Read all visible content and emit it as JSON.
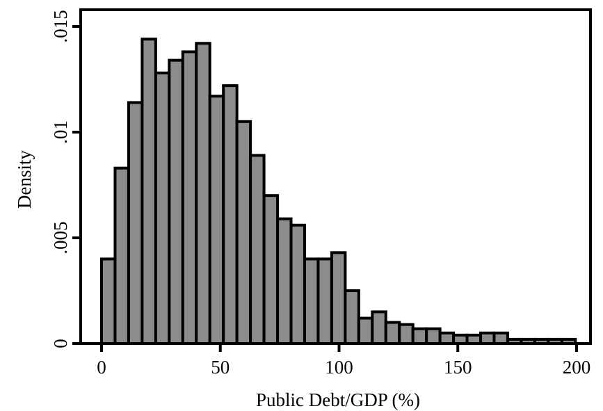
{
  "chart_data": {
    "type": "bar",
    "subtype": "histogram",
    "xlabel": "Public Debt/GDP (%)",
    "ylabel": "Density",
    "xlim": [
      0,
      200
    ],
    "ylim": [
      0,
      0.015
    ],
    "xticks": [
      {
        "value": 0,
        "label": "0"
      },
      {
        "value": 50,
        "label": "50"
      },
      {
        "value": 100,
        "label": "100"
      },
      {
        "value": 150,
        "label": "150"
      },
      {
        "value": 200,
        "label": "200"
      }
    ],
    "yticks": [
      {
        "value": 0,
        "label": "0"
      },
      {
        "value": 0.005,
        "label": ".005"
      },
      {
        "value": 0.01,
        "label": ".01"
      },
      {
        "value": 0.015,
        "label": ".015"
      }
    ],
    "bin_width": 5.7,
    "bins": [
      {
        "start": 0.0,
        "value": 0.004
      },
      {
        "start": 5.7,
        "value": 0.0083
      },
      {
        "start": 11.4,
        "value": 0.0114
      },
      {
        "start": 17.1,
        "value": 0.0144
      },
      {
        "start": 22.8,
        "value": 0.0128
      },
      {
        "start": 28.5,
        "value": 0.0134
      },
      {
        "start": 34.2,
        "value": 0.0138
      },
      {
        "start": 39.9,
        "value": 0.0142
      },
      {
        "start": 45.6,
        "value": 0.0117
      },
      {
        "start": 51.3,
        "value": 0.0122
      },
      {
        "start": 57.0,
        "value": 0.0105
      },
      {
        "start": 62.7,
        "value": 0.0089
      },
      {
        "start": 68.4,
        "value": 0.007
      },
      {
        "start": 74.1,
        "value": 0.0059
      },
      {
        "start": 79.8,
        "value": 0.0056
      },
      {
        "start": 85.5,
        "value": 0.004
      },
      {
        "start": 91.2,
        "value": 0.004
      },
      {
        "start": 96.9,
        "value": 0.0043
      },
      {
        "start": 102.6,
        "value": 0.0025
      },
      {
        "start": 108.3,
        "value": 0.0012
      },
      {
        "start": 114.0,
        "value": 0.0015
      },
      {
        "start": 119.7,
        "value": 0.001
      },
      {
        "start": 125.4,
        "value": 0.0009
      },
      {
        "start": 131.1,
        "value": 0.0007
      },
      {
        "start": 136.8,
        "value": 0.0007
      },
      {
        "start": 142.5,
        "value": 0.0005
      },
      {
        "start": 148.2,
        "value": 0.0004
      },
      {
        "start": 153.9,
        "value": 0.0004
      },
      {
        "start": 159.6,
        "value": 0.0005
      },
      {
        "start": 165.3,
        "value": 0.0005
      },
      {
        "start": 171.0,
        "value": 0.0002
      },
      {
        "start": 176.7,
        "value": 0.0002
      },
      {
        "start": 182.4,
        "value": 0.0002
      },
      {
        "start": 188.1,
        "value": 0.0002
      },
      {
        "start": 193.8,
        "value": 0.0002
      }
    ],
    "grid": false,
    "colors": {
      "bar_fill": "#8c8c8c",
      "bar_stroke": "#000000",
      "axis": "#000000",
      "background": "#ffffff"
    }
  }
}
